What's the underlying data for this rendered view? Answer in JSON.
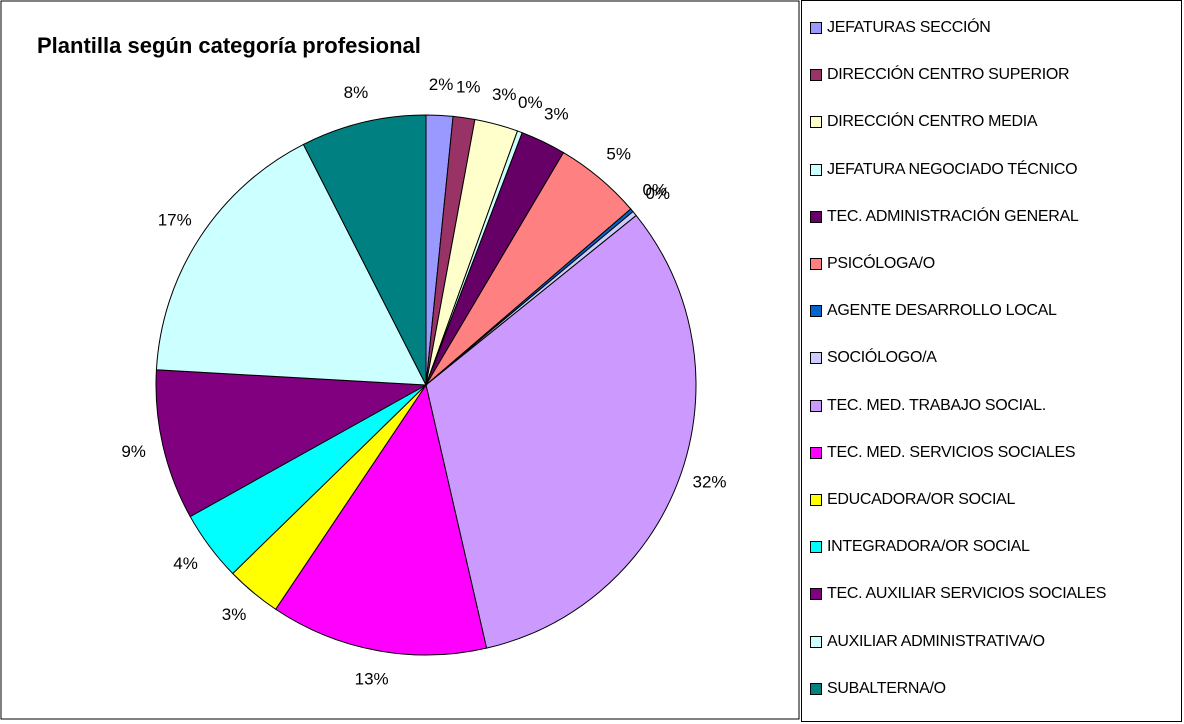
{
  "chart_data": {
    "type": "pie",
    "title": "Plantilla según categoría profesional",
    "categories": [
      "JEFATURAS SECCIÓN",
      "DIRECCIÓN CENTRO SUPERIOR",
      "DIRECCIÓN CENTRO MEDIA",
      "JEFATURA NEGOCIADO TÉCNICO",
      "TEC. ADMINISTRACIÓN GENERAL",
      "PSICÓLOGA/O",
      "AGENTE DESARROLLO LOCAL",
      "SOCIÓLOGO/A",
      "TEC. MED.  TRABAJO SOCIAL.",
      "TEC. MED.  SERVICIOS SOCIALES",
      "EDUCADORA/OR SOCIAL",
      "INTEGRADORA/OR SOCIAL",
      "TEC. AUXILIAR SERVICIOS SOCIALES",
      "AUXILIAR ADMINISTRATIVA/O",
      "SUBALTERNA/O"
    ],
    "values": [
      1.6,
      1.3,
      2.6,
      0.3,
      2.7,
      5.2,
      0.2,
      0.3,
      32.2,
      13.0,
      3.3,
      4.2,
      9.0,
      16.6,
      7.5
    ],
    "value_labels": [
      "2%",
      "1%",
      "3%",
      "0%",
      "3%",
      "5%",
      "0%",
      "0%",
      "32%",
      "13%",
      "3%",
      "4%",
      "9%",
      "17%",
      "8%"
    ],
    "colors": [
      "#9999ff",
      "#993366",
      "#ffffcc",
      "#ccffff",
      "#660066",
      "#ff8080",
      "#0066cc",
      "#ccccff",
      "#cc99ff",
      "#ff00ff",
      "#ffff00",
      "#00ffff",
      "#800080",
      "#ccffff",
      "#008080"
    ],
    "legend": "right"
  }
}
